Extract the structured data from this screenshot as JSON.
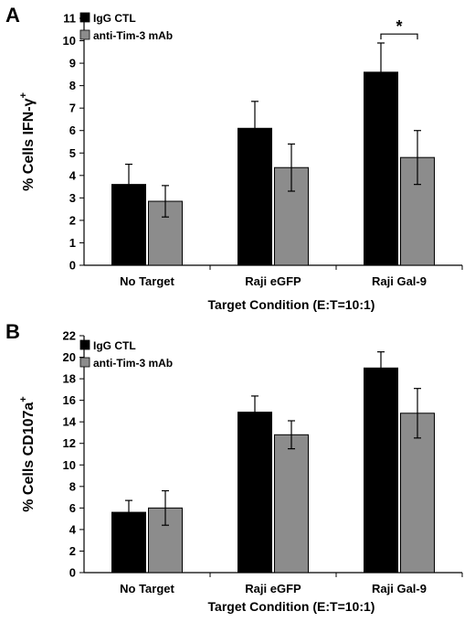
{
  "chart_data": [
    {
      "panel": "A",
      "type": "bar",
      "categories": [
        "No Target",
        "Raji eGFP",
        "Raji Gal-9"
      ],
      "series": [
        {
          "name": "IgG CTL",
          "values": [
            3.6,
            6.1,
            8.6
          ],
          "errors": [
            0.9,
            1.2,
            1.3
          ],
          "color": "#000000"
        },
        {
          "name": "anti-Tim-3 mAb",
          "values": [
            2.85,
            4.35,
            4.8
          ],
          "errors": [
            0.7,
            1.05,
            1.2
          ],
          "color": "#8c8c8c"
        }
      ],
      "xlabel": "Target Condition (E:T=10:1)",
      "ylabel": "% Cells IFN-γ",
      "ylabel_sup": "+",
      "ylim": [
        0,
        11
      ],
      "yticks": [
        0,
        1,
        2,
        3,
        4,
        5,
        6,
        7,
        8,
        9,
        10,
        11
      ],
      "legend_position": "top-left",
      "annotations": [
        {
          "text": "*",
          "category": "Raji Gal-9",
          "y": 10.3
        }
      ]
    },
    {
      "panel": "B",
      "type": "bar",
      "categories": [
        "No Target",
        "Raji eGFP",
        "Raji Gal-9"
      ],
      "series": [
        {
          "name": "IgG CTL",
          "values": [
            5.6,
            14.9,
            19.0
          ],
          "errors": [
            1.1,
            1.5,
            1.5
          ],
          "color": "#000000"
        },
        {
          "name": "anti-Tim-3 mAb",
          "values": [
            6.0,
            12.8,
            14.8
          ],
          "errors": [
            1.6,
            1.3,
            2.3
          ],
          "color": "#8c8c8c"
        }
      ],
      "xlabel": "Target Condition (E:T=10:1)",
      "ylabel": "% Cells CD107a",
      "ylabel_sup": "+",
      "ylim": [
        0,
        22
      ],
      "yticks": [
        0,
        2,
        4,
        6,
        8,
        10,
        12,
        14,
        16,
        18,
        20,
        22
      ],
      "legend_position": "top-left"
    }
  ]
}
